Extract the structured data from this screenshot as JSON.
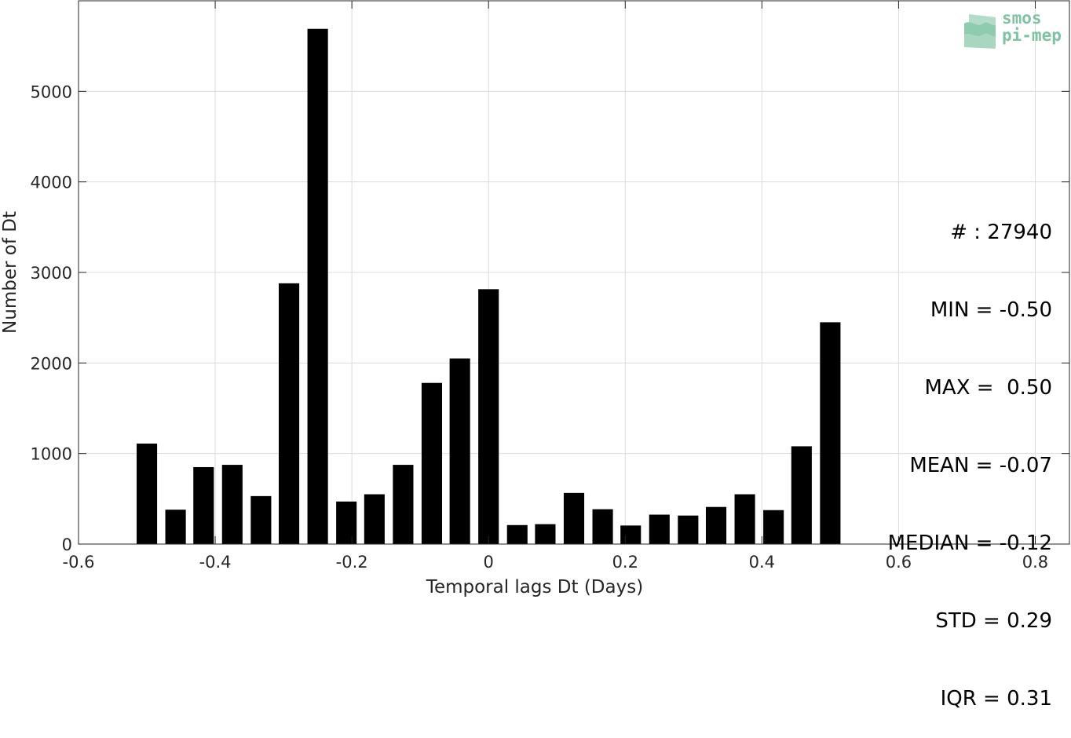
{
  "chart_data": {
    "type": "bar",
    "xlabel": "Temporal lags Dt (Days)",
    "ylabel": "Number of Dt",
    "xlim": [
      -0.6,
      0.85
    ],
    "ylim": [
      0,
      6000
    ],
    "xticks": [
      -0.6,
      -0.4,
      -0.2,
      0,
      0.2,
      0.4,
      0.6,
      0.8
    ],
    "yticks": [
      0,
      1000,
      2000,
      3000,
      4000,
      5000
    ],
    "xtick_labels": [
      "-0.6",
      "-0.4",
      "-0.2",
      "0",
      "0.2",
      "0.4",
      "0.6",
      "0.8"
    ],
    "ytick_labels": [
      "0",
      "1000",
      "2000",
      "3000",
      "4000",
      "5000"
    ],
    "grid": true,
    "bar_width": 0.03,
    "x": [
      -0.5,
      -0.458,
      -0.417,
      -0.375,
      -0.333,
      -0.292,
      -0.25,
      -0.208,
      -0.167,
      -0.125,
      -0.083,
      -0.042,
      0,
      0.042,
      0.083,
      0.125,
      0.167,
      0.208,
      0.25,
      0.292,
      0.333,
      0.375,
      0.417,
      0.458,
      0.5
    ],
    "values": [
      1110,
      380,
      850,
      875,
      530,
      2880,
      5690,
      470,
      550,
      875,
      1780,
      2050,
      2815,
      210,
      220,
      565,
      385,
      205,
      325,
      315,
      410,
      550,
      375,
      1080,
      2450
    ],
    "bar_color": "#000000",
    "grid_color": "#dcdcdc"
  },
  "stats": {
    "lines": [
      "# : 27940",
      "MIN = -0.50",
      "MAX =  0.50",
      "MEAN = -0.07",
      "MEDIAN = -0.12",
      "STD = 0.29",
      "IQR = 0.31"
    ]
  },
  "logo": {
    "line1": "smos",
    "line2": "pi-mep",
    "color": "#7fc3a3"
  }
}
